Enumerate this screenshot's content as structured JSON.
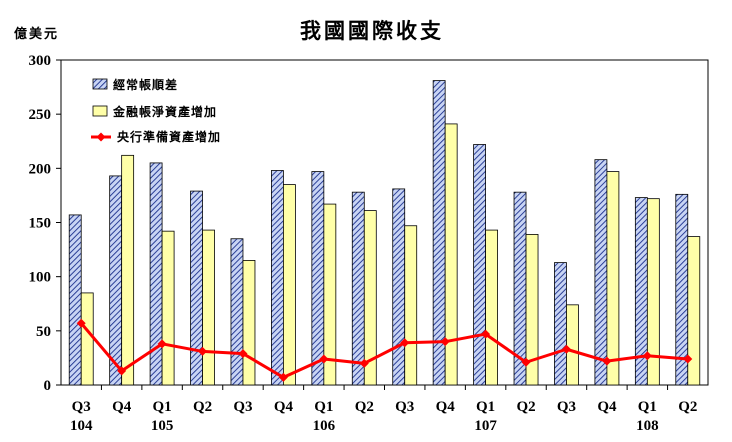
{
  "chart_data": {
    "type": "bar",
    "title": "我國國際收支",
    "unit_label": "億美元",
    "ylim": [
      0,
      300
    ],
    "yticks": [
      0,
      50,
      100,
      150,
      200,
      250,
      300
    ],
    "grid": false,
    "legend_position": "top-left",
    "categories": [
      "Q3",
      "Q4",
      "Q1",
      "Q2",
      "Q3",
      "Q4",
      "Q1",
      "Q2",
      "Q3",
      "Q4",
      "Q1",
      "Q2",
      "Q3",
      "Q4",
      "Q1",
      "Q2"
    ],
    "year_labels": [
      {
        "index": 0,
        "label": "104"
      },
      {
        "index": 2,
        "label": "105"
      },
      {
        "index": 6,
        "label": "106"
      },
      {
        "index": 10,
        "label": "107"
      },
      {
        "index": 14,
        "label": "108"
      }
    ],
    "series": [
      {
        "name": "經常帳順差",
        "type": "bar",
        "values": [
          157,
          193,
          205,
          179,
          135,
          198,
          197,
          178,
          181,
          281,
          222,
          178,
          113,
          208,
          173,
          176
        ]
      },
      {
        "name": "金融帳淨資產增加",
        "type": "bar",
        "values": [
          85,
          212,
          142,
          143,
          115,
          185,
          167,
          161,
          147,
          241,
          143,
          139,
          74,
          197,
          172,
          137
        ]
      },
      {
        "name": "央行準備資產增加",
        "type": "line",
        "values": [
          57,
          13,
          38,
          31,
          29,
          7,
          24,
          20,
          39,
          40,
          47,
          21,
          33,
          22,
          27,
          24
        ]
      }
    ],
    "colors": {
      "bar1_fill": "#c8d4f4",
      "bar1_hatch": "#1a2f8c",
      "bar2_fill": "#ffffa8",
      "line": "#ff0000",
      "axis": "#000000"
    }
  }
}
